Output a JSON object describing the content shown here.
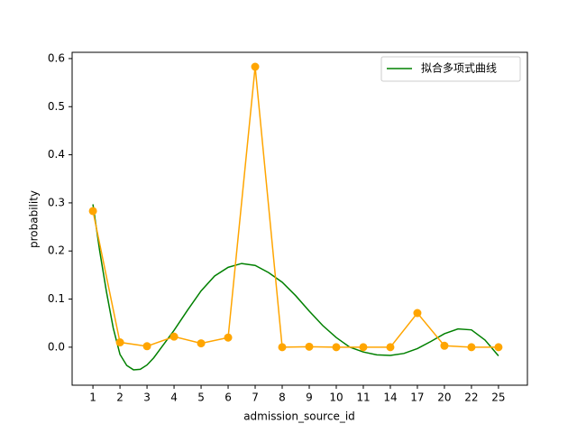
{
  "chart_data": {
    "type": "line",
    "xlabel": "admission_source_id",
    "ylabel": "probability",
    "categories": [
      "1",
      "2",
      "3",
      "4",
      "5",
      "6",
      "7",
      "8",
      "9",
      "10",
      "11",
      "14",
      "17",
      "20",
      "22",
      "25"
    ],
    "xlim": [
      -0.77,
      16.07
    ],
    "ylim": [
      -0.079,
      0.613
    ],
    "yticks": [
      {
        "value": 0,
        "label": "0.0"
      },
      0.1,
      0.2,
      0.3,
      0.4,
      0.5,
      0.6
    ],
    "legend": "upper right",
    "series": [
      {
        "name": "拟合多项式曲线",
        "color": "#008000",
        "x": [
          0,
          0.25,
          0.5,
          0.75,
          1,
          1.25,
          1.5,
          1.75,
          2,
          2.25,
          2.5,
          3,
          3.5,
          4,
          4.5,
          5,
          5.5,
          6,
          6.5,
          7,
          7.5,
          8,
          8.5,
          9,
          9.5,
          10,
          10.5,
          11,
          11.5,
          12,
          12.5,
          13,
          13.5,
          14,
          14.5,
          15
        ],
        "values": [
          0.297,
          0.2,
          0.115,
          0.04,
          -0.015,
          -0.038,
          -0.047,
          -0.046,
          -0.037,
          -0.022,
          -0.003,
          0.035,
          0.077,
          0.117,
          0.148,
          0.166,
          0.174,
          0.17,
          0.155,
          0.135,
          0.107,
          0.075,
          0.045,
          0.02,
          0.0,
          -0.01,
          -0.016,
          -0.017,
          -0.013,
          -0.003,
          0.012,
          0.028,
          0.038,
          0.036,
          0.015,
          -0.018
        ]
      },
      {
        "color": "#ffa500",
        "values": [
          0.283,
          0.01,
          0.002,
          0.022,
          0.008,
          0.02,
          0.583,
          0.0,
          0.001,
          0.0,
          0.0,
          0.0,
          0.071,
          0.003,
          0.0,
          0.0
        ]
      }
    ]
  }
}
